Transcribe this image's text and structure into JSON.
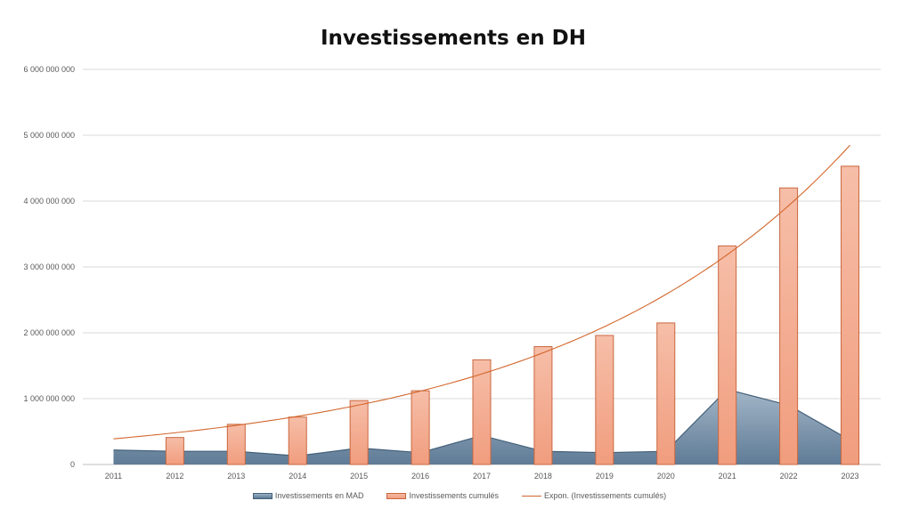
{
  "chart_data": {
    "type": "bar",
    "title": "Investissements en DH",
    "categories": [
      "2011",
      "2012",
      "2013",
      "2014",
      "2015",
      "2016",
      "2017",
      "2018",
      "2019",
      "2020",
      "2021",
      "2022",
      "2023"
    ],
    "ylim": [
      0,
      6000000000
    ],
    "yticks": [
      0,
      1000000000,
      2000000000,
      3000000000,
      4000000000,
      5000000000,
      6000000000
    ],
    "ytick_labels": [
      "0",
      "1 000 000 000",
      "2 000 000 000",
      "3 000 000 000",
      "4 000 000 000",
      "5 000 000 000",
      "6 000 000 000"
    ],
    "grid": true,
    "legend_position": "bottom",
    "series": [
      {
        "name": "Investissements en MAD",
        "type": "area",
        "color": "#6e8aa5",
        "values": [
          220000000,
          200000000,
          200000000,
          130000000,
          250000000,
          180000000,
          440000000,
          200000000,
          180000000,
          200000000,
          1140000000,
          900000000,
          370000000
        ]
      },
      {
        "name": "Investissements cumulés",
        "type": "bar",
        "color": "#f3a98c",
        "values": [
          0,
          410000000,
          610000000,
          720000000,
          970000000,
          1120000000,
          1590000000,
          1790000000,
          1960000000,
          2150000000,
          3320000000,
          4200000000,
          4530000000
        ]
      },
      {
        "name": "Expon. (Investissements cumulés)",
        "type": "trendline",
        "color": "#d2662c",
        "start_value": 390000000,
        "end_value": 4850000000
      }
    ]
  }
}
